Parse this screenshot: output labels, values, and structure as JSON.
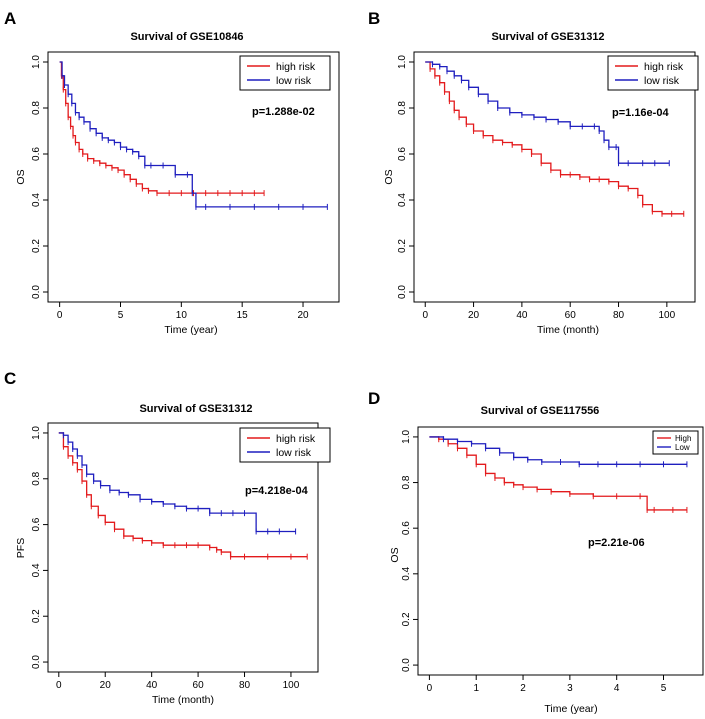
{
  "chart_data": [
    {
      "type": "line",
      "panel": "A",
      "title": "Survival of  GSE10846",
      "xlabel": "Time (year)",
      "ylabel": "OS",
      "xlim": [
        0,
        22
      ],
      "ylim": [
        0,
        1
      ],
      "xticks": [
        "0",
        "5",
        "10",
        "15",
        "20"
      ],
      "xtick_values": [
        0,
        5,
        10,
        15,
        20
      ],
      "yticks": [
        "0.0",
        "0.2",
        "0.4",
        "0.6",
        "0.8",
        "1.0"
      ],
      "ytick_values": [
        0,
        0.2,
        0.4,
        0.6,
        0.8,
        1.0
      ],
      "p_value": "p=1.288e-02",
      "legend_position": "top-right",
      "legend_style": "large",
      "series": [
        {
          "name": "high risk",
          "color": "#e31a1c",
          "x": [
            0,
            0.15,
            0.3,
            0.5,
            0.7,
            0.9,
            1.1,
            1.3,
            1.6,
            1.9,
            2.3,
            2.8,
            3.3,
            3.8,
            4.3,
            4.8,
            5.3,
            5.8,
            6.3,
            6.8,
            7.3,
            8.0,
            9.0,
            10.0,
            11.0,
            12.0,
            13.0,
            14.0,
            15.0,
            16.0,
            16.8
          ],
          "y": [
            1.0,
            0.94,
            0.88,
            0.82,
            0.76,
            0.72,
            0.68,
            0.65,
            0.62,
            0.6,
            0.58,
            0.57,
            0.56,
            0.55,
            0.54,
            0.53,
            0.51,
            0.49,
            0.47,
            0.45,
            0.44,
            0.43,
            0.43,
            0.43,
            0.43,
            0.43,
            0.43,
            0.43,
            0.43,
            0.43,
            0.43
          ]
        },
        {
          "name": "low risk",
          "color": "#1f1fbf",
          "x": [
            0,
            0.2,
            0.4,
            0.7,
            1.0,
            1.3,
            1.6,
            2.0,
            2.5,
            3.0,
            3.5,
            4.0,
            4.5,
            5.0,
            5.5,
            6.0,
            6.5,
            7.0,
            7.5,
            8.5,
            9.5,
            10.5,
            10.9,
            11.2,
            12.0,
            14.0,
            16.0,
            18.0,
            20.0,
            22.0
          ],
          "y": [
            1.0,
            0.94,
            0.9,
            0.86,
            0.82,
            0.78,
            0.76,
            0.74,
            0.71,
            0.69,
            0.67,
            0.66,
            0.65,
            0.63,
            0.62,
            0.61,
            0.59,
            0.55,
            0.55,
            0.55,
            0.51,
            0.51,
            0.43,
            0.37,
            0.37,
            0.37,
            0.37,
            0.37,
            0.37,
            0.37
          ]
        }
      ]
    },
    {
      "type": "line",
      "panel": "B",
      "title": "Survival of GSE31312",
      "xlabel": "Time (month)",
      "ylabel": "OS",
      "xlim": [
        0,
        107
      ],
      "ylim": [
        0,
        1
      ],
      "xticks": [
        "0",
        "20",
        "40",
        "60",
        "80",
        "100"
      ],
      "xtick_values": [
        0,
        20,
        40,
        60,
        80,
        100
      ],
      "yticks": [
        "0.0",
        "0.2",
        "0.4",
        "0.6",
        "0.8",
        "1.0"
      ],
      "ytick_values": [
        0,
        0.2,
        0.4,
        0.6,
        0.8,
        1.0
      ],
      "p_value": "p=1.16e-04",
      "legend_position": "top-right",
      "legend_style": "large",
      "series": [
        {
          "name": "high risk",
          "color": "#e31a1c",
          "x": [
            0,
            2,
            4,
            6,
            8,
            10,
            12,
            14,
            17,
            20,
            24,
            28,
            32,
            36,
            40,
            44,
            48,
            52,
            56,
            60,
            64,
            68,
            72,
            76,
            80,
            84,
            88,
            90,
            94,
            98,
            102,
            107
          ],
          "y": [
            1.0,
            0.97,
            0.94,
            0.91,
            0.87,
            0.83,
            0.79,
            0.76,
            0.73,
            0.7,
            0.68,
            0.66,
            0.65,
            0.64,
            0.62,
            0.6,
            0.56,
            0.53,
            0.51,
            0.51,
            0.5,
            0.49,
            0.49,
            0.48,
            0.46,
            0.45,
            0.42,
            0.38,
            0.35,
            0.34,
            0.34,
            0.34
          ]
        },
        {
          "name": "low risk",
          "color": "#1f1fbf",
          "x": [
            0,
            3,
            6,
            9,
            12,
            15,
            18,
            22,
            26,
            30,
            35,
            40,
            45,
            50,
            55,
            60,
            65,
            70,
            72,
            74,
            76,
            79,
            80,
            84,
            90,
            95,
            101
          ],
          "y": [
            1.0,
            0.99,
            0.98,
            0.96,
            0.94,
            0.92,
            0.89,
            0.86,
            0.83,
            0.8,
            0.78,
            0.77,
            0.76,
            0.75,
            0.74,
            0.72,
            0.72,
            0.72,
            0.7,
            0.66,
            0.63,
            0.63,
            0.56,
            0.56,
            0.56,
            0.56,
            0.56
          ]
        }
      ]
    },
    {
      "type": "line",
      "panel": "C",
      "title": "Survival of GSE31312",
      "xlabel": "Time (month)",
      "ylabel": "PFS",
      "xlim": [
        0,
        107
      ],
      "ylim": [
        0,
        1
      ],
      "xticks": [
        "0",
        "20",
        "40",
        "60",
        "80",
        "100"
      ],
      "xtick_values": [
        0,
        20,
        40,
        60,
        80,
        100
      ],
      "yticks": [
        "0.0",
        "0.2",
        "0.4",
        "0.6",
        "0.8",
        "1.0"
      ],
      "ytick_values": [
        0,
        0.2,
        0.4,
        0.6,
        0.8,
        1.0
      ],
      "p_value": "p=4.218e-04",
      "legend_position": "top-right",
      "legend_style": "large",
      "series": [
        {
          "name": "high risk",
          "color": "#e31a1c",
          "x": [
            0,
            2,
            4,
            6,
            8,
            10,
            12,
            14,
            17,
            20,
            24,
            28,
            32,
            36,
            40,
            45,
            50,
            55,
            60,
            65,
            68,
            70,
            74,
            80,
            90,
            100,
            107
          ],
          "y": [
            1.0,
            0.94,
            0.9,
            0.87,
            0.84,
            0.79,
            0.73,
            0.68,
            0.64,
            0.61,
            0.58,
            0.55,
            0.54,
            0.53,
            0.52,
            0.51,
            0.51,
            0.51,
            0.51,
            0.5,
            0.49,
            0.48,
            0.46,
            0.46,
            0.46,
            0.46,
            0.46
          ]
        },
        {
          "name": "low risk",
          "color": "#1f1fbf",
          "x": [
            0,
            2,
            4,
            6,
            8,
            10,
            12,
            15,
            18,
            22,
            26,
            30,
            35,
            40,
            45,
            50,
            55,
            60,
            65,
            70,
            75,
            80,
            85,
            90,
            95,
            102
          ],
          "y": [
            1.0,
            0.99,
            0.96,
            0.93,
            0.9,
            0.86,
            0.82,
            0.79,
            0.77,
            0.75,
            0.74,
            0.73,
            0.71,
            0.7,
            0.69,
            0.68,
            0.67,
            0.67,
            0.65,
            0.65,
            0.65,
            0.65,
            0.57,
            0.57,
            0.57,
            0.57
          ]
        }
      ]
    },
    {
      "type": "line",
      "panel": "D",
      "title": "Survival of GSE117556",
      "xlabel": "Time (year)",
      "ylabel": "OS",
      "xlim": [
        0,
        5.6
      ],
      "ylim": [
        0,
        1
      ],
      "xticks": [
        "0",
        "1",
        "2",
        "3",
        "4",
        "5"
      ],
      "xtick_values": [
        0,
        1,
        2,
        3,
        4,
        5
      ],
      "yticks": [
        "0.0",
        "0.2",
        "0.4",
        "0.6",
        "0.8",
        "1.0"
      ],
      "ytick_values": [
        0,
        0.2,
        0.4,
        0.6,
        0.8,
        1.0
      ],
      "p_value": "p=2.21e-06",
      "legend_position": "top-right",
      "legend_style": "small",
      "series": [
        {
          "name": "High",
          "color": "#e31a1c",
          "x": [
            0,
            0.2,
            0.4,
            0.6,
            0.8,
            1.0,
            1.2,
            1.4,
            1.6,
            1.8,
            2.0,
            2.3,
            2.6,
            3.0,
            3.5,
            4.0,
            4.5,
            4.65,
            4.8,
            5.2,
            5.5
          ],
          "y": [
            1.0,
            0.99,
            0.97,
            0.95,
            0.92,
            0.88,
            0.84,
            0.82,
            0.8,
            0.79,
            0.78,
            0.77,
            0.76,
            0.75,
            0.74,
            0.74,
            0.74,
            0.68,
            0.68,
            0.68,
            0.68
          ]
        },
        {
          "name": "Low",
          "color": "#1f1fbf",
          "x": [
            0,
            0.3,
            0.6,
            0.9,
            1.2,
            1.5,
            1.8,
            2.1,
            2.4,
            2.8,
            3.2,
            3.6,
            4.0,
            4.5,
            5.0,
            5.5
          ],
          "y": [
            1.0,
            0.99,
            0.98,
            0.97,
            0.95,
            0.93,
            0.91,
            0.9,
            0.89,
            0.89,
            0.88,
            0.88,
            0.88,
            0.88,
            0.88,
            0.88
          ]
        }
      ]
    }
  ]
}
